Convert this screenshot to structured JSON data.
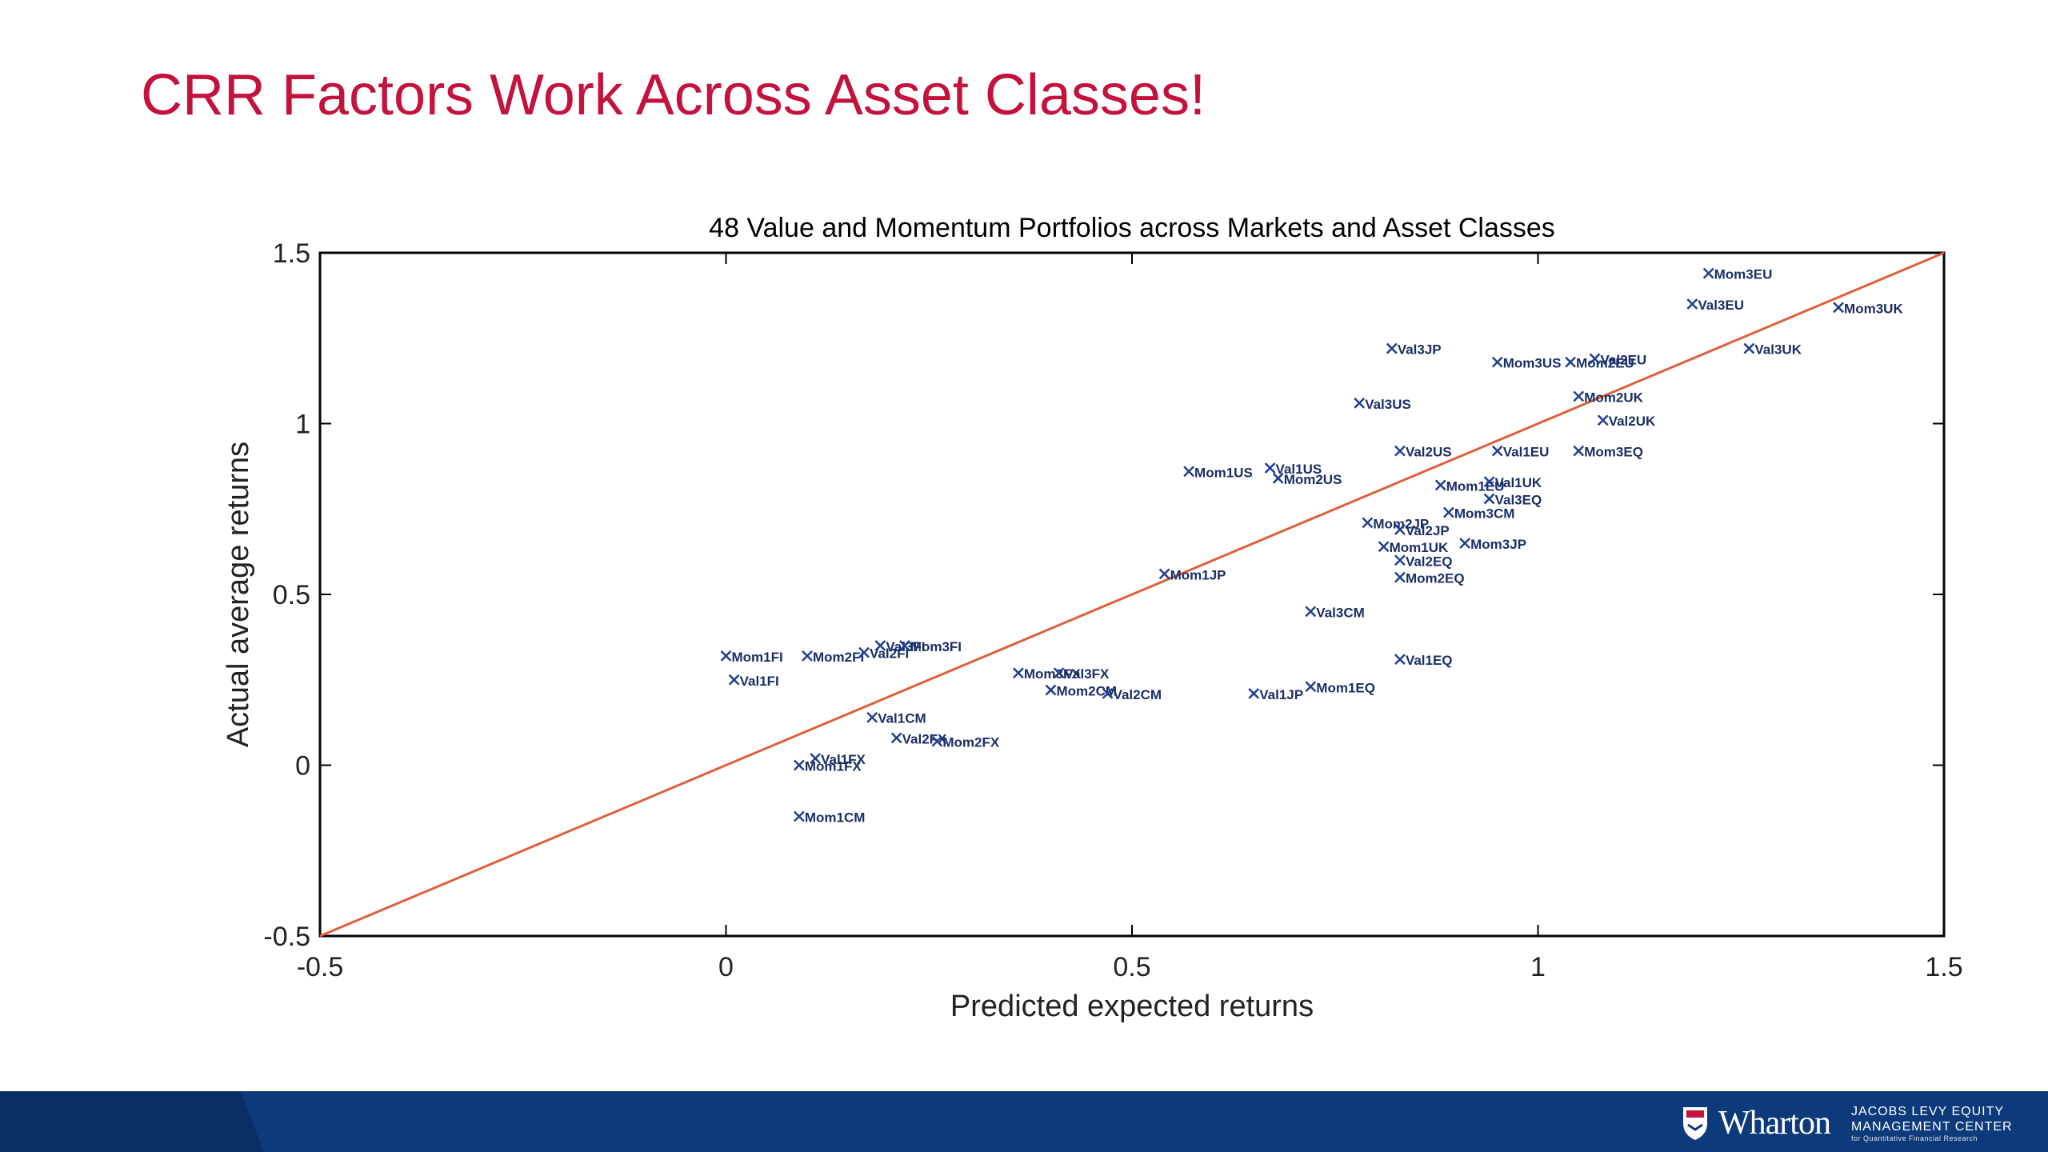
{
  "slide": {
    "title": "CRR Factors Work Across Asset Classes!"
  },
  "footer": {
    "brand": "Wharton",
    "center_line1": "JACOBS LEVY EQUITY",
    "center_line2": "MANAGEMENT CENTER",
    "center_line3": "for Quantitative Financial Research",
    "colors": {
      "bar": "#0c3a7a",
      "bar_dark": "#0a2f66"
    }
  },
  "chart_data": {
    "type": "scatter",
    "title": "48 Value and Momentum Portfolios across Markets and Asset Classes",
    "xlabel": "Predicted expected returns",
    "ylabel": "Actual average returns",
    "xlim": [
      -0.5,
      1.5
    ],
    "ylim": [
      -0.5,
      1.5
    ],
    "xticks": [
      -0.5,
      0,
      0.5,
      1,
      1.5
    ],
    "yticks": [
      -0.5,
      0,
      0.5,
      1,
      1.5
    ],
    "xtick_labels": [
      "-0.5",
      "0",
      "0.5",
      "1",
      "1.5"
    ],
    "ytick_labels": [
      "-0.5",
      "0",
      "0.5",
      "1",
      "1.5"
    ],
    "grid": false,
    "reference_line": {
      "from": [
        -0.5,
        -0.5
      ],
      "to": [
        1.5,
        1.5
      ]
    },
    "colors": {
      "points": "#1f3f8f",
      "line": "#e0603c",
      "title": "#c4123e"
    },
    "points": [
      {
        "label": "Mom3EU",
        "x": 1.21,
        "y": 1.44
      },
      {
        "label": "Val3EU",
        "x": 1.19,
        "y": 1.35
      },
      {
        "label": "Mom3UK",
        "x": 1.37,
        "y": 1.34
      },
      {
        "label": "Val3UK",
        "x": 1.26,
        "y": 1.22
      },
      {
        "label": "Val3JP",
        "x": 0.82,
        "y": 1.22
      },
      {
        "label": "Mom3US",
        "x": 0.95,
        "y": 1.18
      },
      {
        "label": "Mom2EU",
        "x": 1.04,
        "y": 1.18
      },
      {
        "label": "Val2EU",
        "x": 1.07,
        "y": 1.19
      },
      {
        "label": "Mom2UK",
        "x": 1.05,
        "y": 1.08
      },
      {
        "label": "Val3US",
        "x": 0.78,
        "y": 1.06
      },
      {
        "label": "Val2UK",
        "x": 1.08,
        "y": 1.01
      },
      {
        "label": "Val2US",
        "x": 0.83,
        "y": 0.92
      },
      {
        "label": "Val1EU",
        "x": 0.95,
        "y": 0.92
      },
      {
        "label": "Mom3EQ",
        "x": 1.05,
        "y": 0.92
      },
      {
        "label": "Mom1US",
        "x": 0.57,
        "y": 0.86
      },
      {
        "label": "Val1US",
        "x": 0.67,
        "y": 0.87
      },
      {
        "label": "Mom2US",
        "x": 0.68,
        "y": 0.84
      },
      {
        "label": "Mom1EU",
        "x": 0.88,
        "y": 0.82
      },
      {
        "label": "Val1UK",
        "x": 0.94,
        "y": 0.83
      },
      {
        "label": "Val3EQ",
        "x": 0.94,
        "y": 0.78
      },
      {
        "label": "Mom3CM",
        "x": 0.89,
        "y": 0.74
      },
      {
        "label": "Mom2JP",
        "x": 0.79,
        "y": 0.71
      },
      {
        "label": "Val2JP",
        "x": 0.83,
        "y": 0.69
      },
      {
        "label": "Mom3JP",
        "x": 0.91,
        "y": 0.65
      },
      {
        "label": "Mom1UK",
        "x": 0.81,
        "y": 0.64
      },
      {
        "label": "Val2EQ",
        "x": 0.83,
        "y": 0.6
      },
      {
        "label": "Mom2EQ",
        "x": 0.83,
        "y": 0.55
      },
      {
        "label": "Mom1JP",
        "x": 0.54,
        "y": 0.56
      },
      {
        "label": "Val3CM",
        "x": 0.72,
        "y": 0.45
      },
      {
        "label": "Val1EQ",
        "x": 0.83,
        "y": 0.31
      },
      {
        "label": "Mom1EQ",
        "x": 0.72,
        "y": 0.23
      },
      {
        "label": "Val1JP",
        "x": 0.65,
        "y": 0.21
      },
      {
        "label": "Mom1FI",
        "x": 0.0,
        "y": 0.32
      },
      {
        "label": "Val1FI",
        "x": 0.01,
        "y": 0.25
      },
      {
        "label": "Mom2FI",
        "x": 0.1,
        "y": 0.32
      },
      {
        "label": "Val2FI",
        "x": 0.17,
        "y": 0.33
      },
      {
        "label": "Val3FI",
        "x": 0.19,
        "y": 0.35
      },
      {
        "label": "Mom3FI",
        "x": 0.22,
        "y": 0.35
      },
      {
        "label": "Mom3FX",
        "x": 0.36,
        "y": 0.27
      },
      {
        "label": "Val3FX",
        "x": 0.41,
        "y": 0.27
      },
      {
        "label": "Mom2CM",
        "x": 0.4,
        "y": 0.22
      },
      {
        "label": "Val2CM",
        "x": 0.47,
        "y": 0.21
      },
      {
        "label": "Val1CM",
        "x": 0.18,
        "y": 0.14
      },
      {
        "label": "Val2FX",
        "x": 0.21,
        "y": 0.08
      },
      {
        "label": "Mom2FX",
        "x": 0.26,
        "y": 0.07
      },
      {
        "label": "Val1FX",
        "x": 0.11,
        "y": 0.02
      },
      {
        "label": "Mom1FX",
        "x": 0.09,
        "y": 0.0
      },
      {
        "label": "Mom1CM",
        "x": 0.09,
        "y": -0.15
      }
    ]
  }
}
